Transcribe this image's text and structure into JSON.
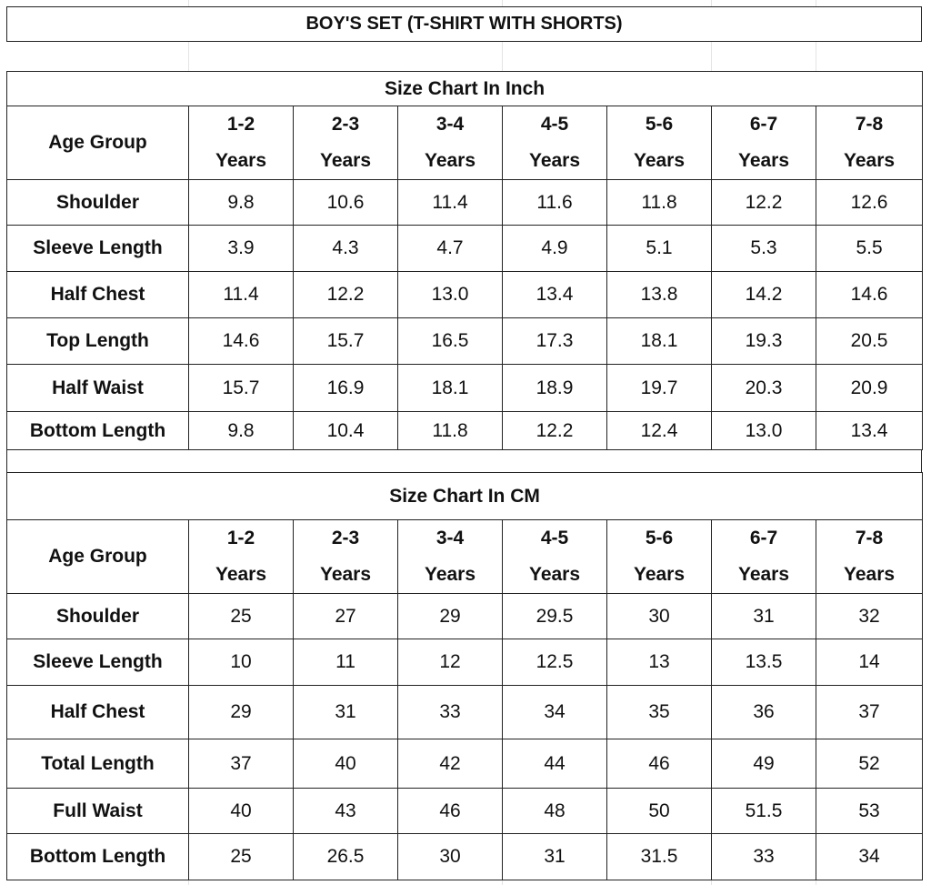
{
  "title": "BOY'S SET (T-SHIRT WITH SHORTS)",
  "tables": [
    {
      "title": "Size Chart In Inch",
      "header": [
        "Age Group",
        "1-2 Years",
        "2-3 Years",
        "3-4 Years",
        "4-5 Years",
        "5-6 Years",
        "6-7 Years",
        "7-8 Years"
      ],
      "rows": [
        [
          "Shoulder",
          "9.8",
          "10.6",
          "11.4",
          "11.6",
          "11.8",
          "12.2",
          "12.6"
        ],
        [
          "Sleeve Length",
          "3.9",
          "4.3",
          "4.7",
          "4.9",
          "5.1",
          "5.3",
          "5.5"
        ],
        [
          "Half Chest",
          "11.4",
          "12.2",
          "13.0",
          "13.4",
          "13.8",
          "14.2",
          "14.6"
        ],
        [
          "Top Length",
          "14.6",
          "15.7",
          "16.5",
          "17.3",
          "18.1",
          "19.3",
          "20.5"
        ],
        [
          "Half Waist",
          "15.7",
          "16.9",
          "18.1",
          "18.9",
          "19.7",
          "20.3",
          "20.9"
        ],
        [
          "Bottom Length",
          "9.8",
          "10.4",
          "11.8",
          "12.2",
          "12.4",
          "13.0",
          "13.4"
        ]
      ]
    },
    {
      "title": "Size Chart In CM",
      "header": [
        "Age Group",
        "1-2 Years",
        "2-3 Years",
        "3-4 Years",
        "4-5 Years",
        "5-6 Years",
        "6-7 Years",
        "7-8 Years"
      ],
      "rows": [
        [
          "Shoulder",
          "25",
          "27",
          "29",
          "29.5",
          "30",
          "31",
          "32"
        ],
        [
          "Sleeve Length",
          "10",
          "11",
          "12",
          "12.5",
          "13",
          "13.5",
          "14"
        ],
        [
          "Half Chest",
          "29",
          "31",
          "33",
          "34",
          "35",
          "36",
          "37"
        ],
        [
          "Total Length",
          "37",
          "40",
          "42",
          "44",
          "46",
          "49",
          "52"
        ],
        [
          "Full Waist",
          "40",
          "43",
          "46",
          "48",
          "50",
          "51.5",
          "53"
        ],
        [
          "Bottom Length",
          "25",
          "26.5",
          "30",
          "31",
          "31.5",
          "33",
          "34"
        ]
      ]
    }
  ]
}
